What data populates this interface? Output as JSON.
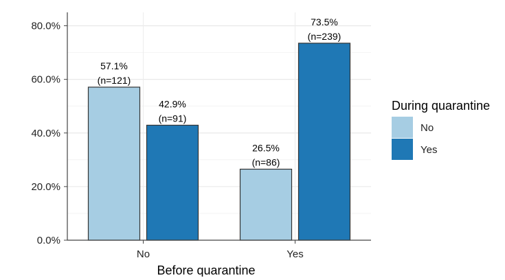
{
  "chart_data": {
    "type": "bar",
    "categories": [
      "No",
      "Yes"
    ],
    "series": [
      {
        "name": "No",
        "color": "#a6cde3",
        "values": [
          57.1,
          26.5
        ],
        "labels": [
          "57.1%",
          "26.5%"
        ],
        "n_labels": [
          "(n=121)",
          "(n=86)"
        ]
      },
      {
        "name": "Yes",
        "color": "#1f78b5",
        "values": [
          42.9,
          73.5
        ],
        "labels": [
          "42.9%",
          "73.5%"
        ],
        "n_labels": [
          "(n=91)",
          "(n=239)"
        ]
      }
    ],
    "xlabel": "Before quarantine",
    "ylabel": "",
    "ylim": [
      0,
      85
    ],
    "yticks": [
      0,
      20,
      40,
      60,
      80
    ],
    "ytick_labels": [
      "0.0%",
      "20.0%",
      "40.0%",
      "60.0%",
      "80.0%"
    ],
    "legend": {
      "title": "During quarantine",
      "position": "right"
    },
    "grid": true,
    "bar_outline_color": "#333333"
  }
}
